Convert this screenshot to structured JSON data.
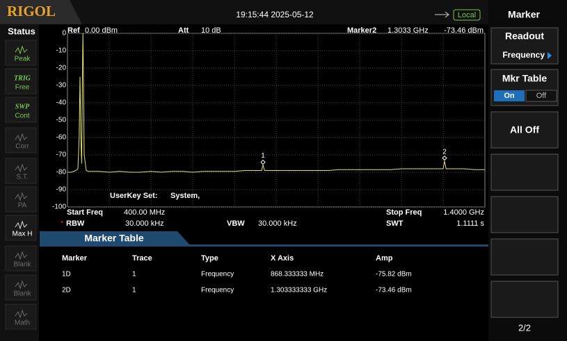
{
  "header": {
    "brand": "RIGOL",
    "datetime": "19:15:44 2025-05-12",
    "mode": "Local"
  },
  "status": {
    "title": "Status",
    "items": [
      {
        "label": "Peak"
      },
      {
        "tag": "TRIG",
        "label": "Free"
      },
      {
        "tag": "SWP",
        "label": "Cont"
      },
      {
        "label": "Corr"
      },
      {
        "label": "S.T."
      },
      {
        "label": "PA"
      },
      {
        "label": "Max H"
      },
      {
        "label": "Blank"
      },
      {
        "label": "Blank"
      },
      {
        "label": "Math"
      }
    ]
  },
  "menu": {
    "title": "Marker",
    "readout": "Readout",
    "readout_value": "Frequency",
    "mkr_table": "Mkr Table",
    "on": "On",
    "off": "Off",
    "all_off": "All Off",
    "page": "2/2"
  },
  "info": {
    "ref_label": "Ref",
    "ref": "0.00 dBm",
    "att_label": "Att",
    "att": "10 dB",
    "marker_label": "Marker2",
    "marker_freq": "1.3033 GHz",
    "marker_amp": "-73.46 dBm",
    "userkey_label": "UserKey Set:",
    "userkey": "System,",
    "start_label": "Start Freq",
    "start": "400.00 MHz",
    "stop_label": "Stop Freq",
    "stop": "1.4000 GHz",
    "rbw_label": "RBW",
    "rbw": "30.000 kHz",
    "vbw_label": "VBW",
    "vbw": "30.000 kHz",
    "swt_label": "SWT",
    "swt": "1.1111 s"
  },
  "chart_data": {
    "type": "line",
    "xlim": [
      400,
      1400
    ],
    "ylim": [
      -100,
      0
    ],
    "yticks": [
      0,
      -10,
      -20,
      -30,
      -40,
      -50,
      -60,
      -70,
      -80,
      -90,
      -100
    ],
    "grid": true,
    "series": [
      {
        "color": "#e8e070",
        "x": [
          400,
          410,
          420,
          425,
          428,
          430,
          432,
          434,
          436,
          437,
          438,
          440,
          445,
          450,
          475,
          500,
          525,
          550,
          575,
          600,
          625,
          650,
          675,
          700,
          725,
          750,
          775,
          800,
          825,
          850,
          865,
          868.33,
          872,
          900,
          925,
          950,
          975,
          1000,
          1025,
          1050,
          1075,
          1100,
          1125,
          1150,
          1175,
          1200,
          1225,
          1250,
          1275,
          1300,
          1303.33,
          1307,
          1325,
          1350,
          1375,
          1400
        ],
        "values": [
          -80,
          -80,
          -79,
          -78,
          -60,
          -25,
          -60,
          -75,
          -20,
          0,
          -20,
          -70,
          -79,
          -79.5,
          -79.5,
          -80,
          -79.5,
          -80,
          -80,
          -79.5,
          -80,
          -79.5,
          -79.5,
          -80,
          -79.5,
          -79.5,
          -79.5,
          -79.5,
          -79,
          -79,
          -79,
          -75.8,
          -79,
          -79,
          -79,
          -79,
          -79,
          -79,
          -79,
          -78.5,
          -78.5,
          -78.5,
          -78.5,
          -78.5,
          -78.5,
          -78,
          -78,
          -78,
          -78,
          -78,
          -73.5,
          -78,
          -78,
          -78,
          -78.5,
          -78.5
        ]
      }
    ],
    "markers": [
      {
        "label": "1",
        "x": 868.333333,
        "y": -75.82
      },
      {
        "label": "2",
        "x": 1303.333333,
        "y": -73.46
      }
    ]
  },
  "marker_table": {
    "title": "Marker Table",
    "columns": [
      "Marker",
      "Trace",
      "Type",
      "X Axis",
      "Amp"
    ],
    "rows": [
      [
        "1D",
        "1",
        "Frequency",
        "868.333333 MHz",
        "-75.82 dBm"
      ],
      [
        "2D",
        "1",
        "Frequency",
        "1.303333333 GHz",
        "-73.46 dBm"
      ]
    ]
  }
}
